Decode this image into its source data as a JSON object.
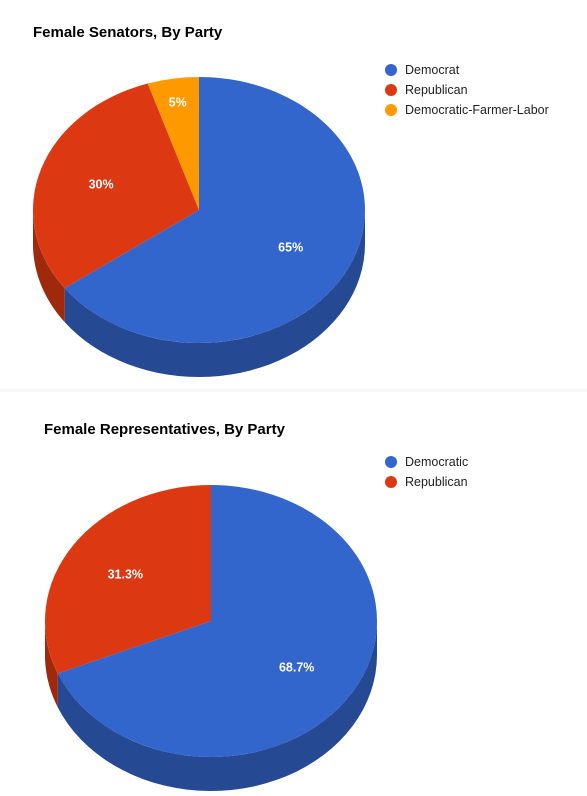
{
  "chart_data": [
    {
      "type": "pie",
      "title": "Female Senators, By Party",
      "series": [
        {
          "name": "Democrat",
          "value": 65,
          "label": "65%",
          "color": "#3366cc"
        },
        {
          "name": "Republican",
          "value": 30,
          "label": "30%",
          "color": "#dc3912"
        },
        {
          "name": "Democratic-Farmer-Labor",
          "value": 5,
          "label": "5%",
          "color": "#ff9900"
        }
      ],
      "legend_position": "right",
      "style": "3d"
    },
    {
      "type": "pie",
      "title": "Female Representatives, By Party",
      "series": [
        {
          "name": "Democratic",
          "value": 68.7,
          "label": "68.7%",
          "color": "#3366cc"
        },
        {
          "name": "Republican",
          "value": 31.3,
          "label": "31.3%",
          "color": "#dc3912"
        }
      ],
      "legend_position": "right",
      "style": "3d"
    }
  ]
}
